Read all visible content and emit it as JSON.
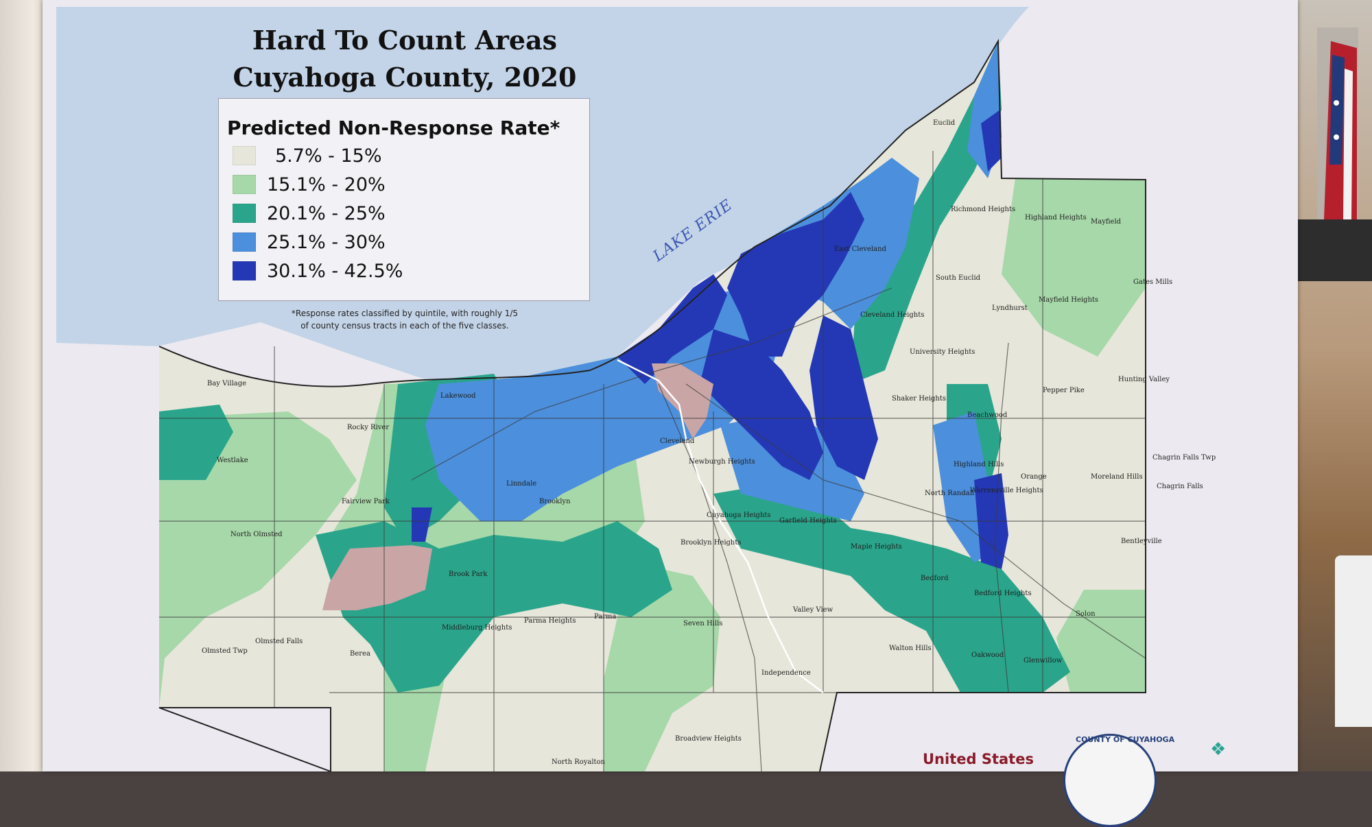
{
  "map": {
    "title_line1": "Hard To Count Areas",
    "title_line2": "Cuyahoga County, 2020",
    "lake_label": "LAKE ERIE",
    "legend": {
      "title": "Predicted Non-Response Rate*",
      "items": [
        {
          "label": "5.7% - 15%",
          "color": "#e7e6da"
        },
        {
          "label": "15.1% - 20%",
          "color": "#a7d8a9"
        },
        {
          "label": "20.1% - 25%",
          "color": "#2aa58b"
        },
        {
          "label": "25.1% - 30%",
          "color": "#4c8fdc"
        },
        {
          "label": "30.1% - 42.5%",
          "color": "#2438b5"
        }
      ]
    },
    "footnote_line1": "*Response rates classified by quintile, with roughly 1/5",
    "footnote_line2": "of county census tracts in each of the five classes.",
    "places": [
      "Euclid",
      "Richmond Heights",
      "Highland Heights",
      "Mayfield",
      "East Cleveland",
      "South Euclid",
      "Lyndhurst",
      "Mayfield Heights",
      "Gates Mills",
      "Cleveland Heights",
      "University Heights",
      "Bay Village",
      "Lakewood",
      "Rocky River",
      "Westlake",
      "Cleveland",
      "Shaker Heights",
      "Beachwood",
      "Pepper Pike",
      "Hunting Valley",
      "Linndale",
      "Newburgh Heights",
      "Fairview Park",
      "Brooklyn",
      "Highland Hills",
      "Orange",
      "Moreland Hills",
      "Chagrin Falls Twp",
      "Chagrin Falls",
      "North Randall",
      "Warrensville Heights",
      "North Olmsted",
      "Cuyahoga Heights",
      "Garfield Heights",
      "Brooklyn Heights",
      "Maple Heights",
      "Bentleyville",
      "Brook Park",
      "Bedford",
      "Bedford Heights",
      "Parma Heights",
      "Parma",
      "Middleburg Heights",
      "Seven Hills",
      "Valley View",
      "Solon",
      "Olmsted Twp",
      "Olmsted Falls",
      "Berea",
      "Walton Hills",
      "Oakwood",
      "Glenwillow",
      "Independence",
      "Broadview Heights",
      "North Royalton"
    ],
    "colors": {
      "lake": "#c4d4e8",
      "land": "#e7e6da",
      "pink_zone": "#c9a5a6"
    }
  },
  "logos": {
    "census": "United States",
    "seal_text": "COUNTY OF CUYAHOGA"
  }
}
